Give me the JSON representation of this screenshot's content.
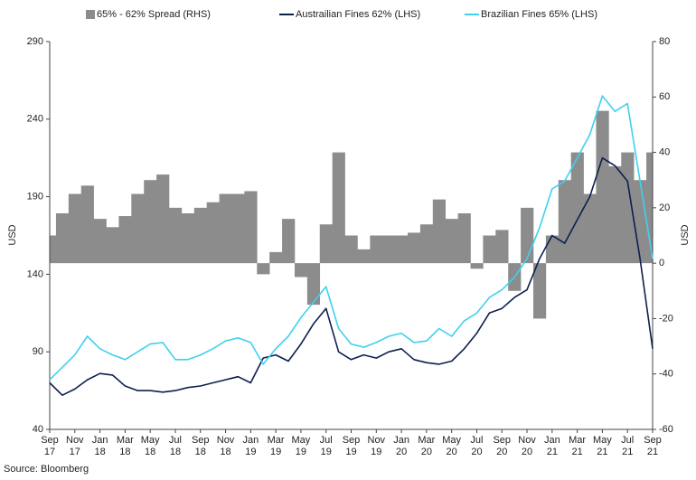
{
  "chart_data": {
    "type": "combo",
    "source": "Source: Bloomberg",
    "ylabel": "USD",
    "y2label": "USD",
    "ylim": [
      40,
      290
    ],
    "yticks": [
      40,
      90,
      140,
      190,
      240,
      290
    ],
    "y2lim": [
      -60,
      80
    ],
    "y2ticks": [
      -60,
      -40,
      -20,
      0,
      20,
      40,
      60,
      80
    ],
    "categories": [
      "Sep 17",
      null,
      "Nov 17",
      null,
      "Jan 18",
      null,
      "Mar 18",
      null,
      "May 18",
      null,
      "Jul 18",
      null,
      "Sep 18",
      null,
      "Nov 18",
      null,
      "Jan 19",
      null,
      "Mar 19",
      null,
      "May 19",
      null,
      "Jul 19",
      null,
      "Sep 19",
      null,
      "Nov 19",
      null,
      "Jan 20",
      null,
      "Mar 20",
      null,
      "May 20",
      null,
      "Jul 20",
      null,
      "Sep 20",
      null,
      "Nov 20",
      null,
      "Jan 21",
      null,
      "Mar 21",
      null,
      "May 21",
      null,
      "Jul 21",
      null,
      "Sep 21"
    ],
    "series": [
      {
        "name": "65% - 62% Spread (RHS)",
        "type": "bar",
        "axis": "y2",
        "color": "#8c8c8c",
        "values": [
          10,
          18,
          25,
          28,
          16,
          13,
          17,
          25,
          30,
          32,
          20,
          18,
          20,
          22,
          25,
          25,
          26,
          -4,
          4,
          16,
          -5,
          -15,
          14,
          40,
          10,
          5,
          10,
          10,
          10,
          11,
          14,
          23,
          16,
          18,
          -2,
          10,
          12,
          -10,
          20,
          -20,
          10,
          30,
          40,
          25,
          55,
          35,
          40,
          30,
          40
        ]
      },
      {
        "name": "Austrailian Fines 62% (LHS)",
        "type": "line",
        "axis": "y",
        "color": "#0d1f4f",
        "values": [
          70,
          62,
          66,
          72,
          76,
          75,
          68,
          65,
          65,
          64,
          65,
          67,
          68,
          70,
          72,
          74,
          70,
          86,
          88,
          84,
          95,
          108,
          118,
          90,
          85,
          88,
          86,
          90,
          92,
          85,
          83,
          82,
          84,
          92,
          102,
          115,
          118,
          125,
          130,
          150,
          165,
          160,
          175,
          190,
          215,
          210,
          200,
          150,
          92
        ]
      },
      {
        "name": "Brazilian Fines 65% (LHS)",
        "type": "line",
        "axis": "y",
        "color": "#3fd0f0",
        "values": [
          72,
          80,
          88,
          100,
          92,
          88,
          85,
          90,
          95,
          96,
          85,
          85,
          88,
          92,
          97,
          99,
          96,
          82,
          92,
          100,
          112,
          122,
          132,
          105,
          95,
          93,
          96,
          100,
          102,
          96,
          97,
          105,
          100,
          110,
          115,
          125,
          130,
          138,
          150,
          170,
          195,
          200,
          215,
          230,
          255,
          245,
          250,
          200,
          150
        ]
      }
    ]
  }
}
